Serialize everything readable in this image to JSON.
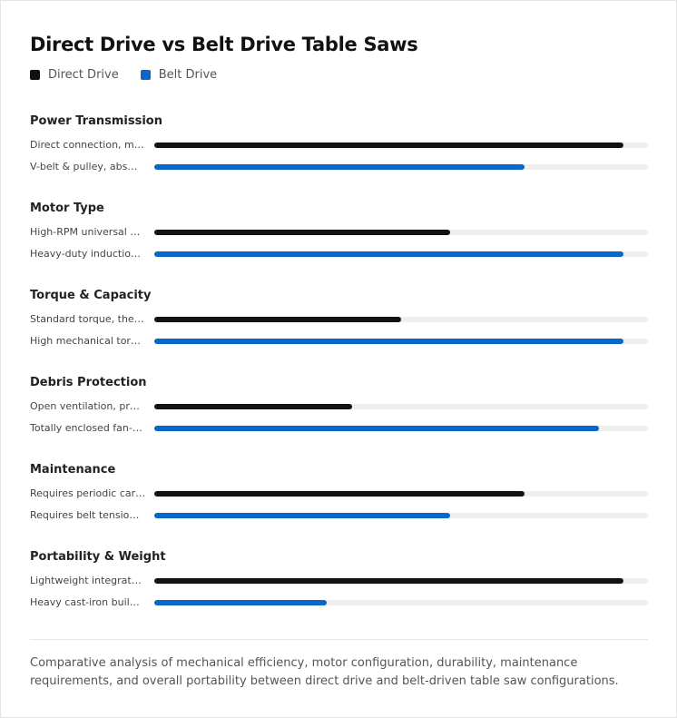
{
  "chart_data": {
    "type": "bar",
    "title": "Direct Drive vs Belt Drive Table Saws",
    "categories": [
      "Power Transmission",
      "Motor Type",
      "Torque & Capacity",
      "Debris Protection",
      "Maintenance",
      "Portability & Weight"
    ],
    "series": [
      {
        "name": "Direct Drive",
        "color": "#111111",
        "values": [
          95,
          60,
          50,
          40,
          75,
          95
        ],
        "labels": [
          "Direct connection, m…",
          "High-RPM universal …",
          "Standard torque, the…",
          "Open ventilation, pr…",
          "Requires periodic car…",
          "Lightweight integrat…"
        ]
      },
      {
        "name": "Belt Drive",
        "color": "#0a66c8",
        "values": [
          75,
          95,
          95,
          90,
          60,
          35
        ],
        "labels": [
          "V-belt & pulley, abs…",
          "Heavy-duty inductio…",
          "High mechanical tor…",
          "Totally enclosed fan-…",
          "Requires belt tensio…",
          "Heavy cast-iron buil…"
        ]
      }
    ],
    "xlim": [
      0,
      100
    ],
    "caption": "Comparative analysis of mechanical efficiency, motor configuration, durability, maintenance requirements, and overall portability between direct drive and belt-driven table saw configurations."
  }
}
